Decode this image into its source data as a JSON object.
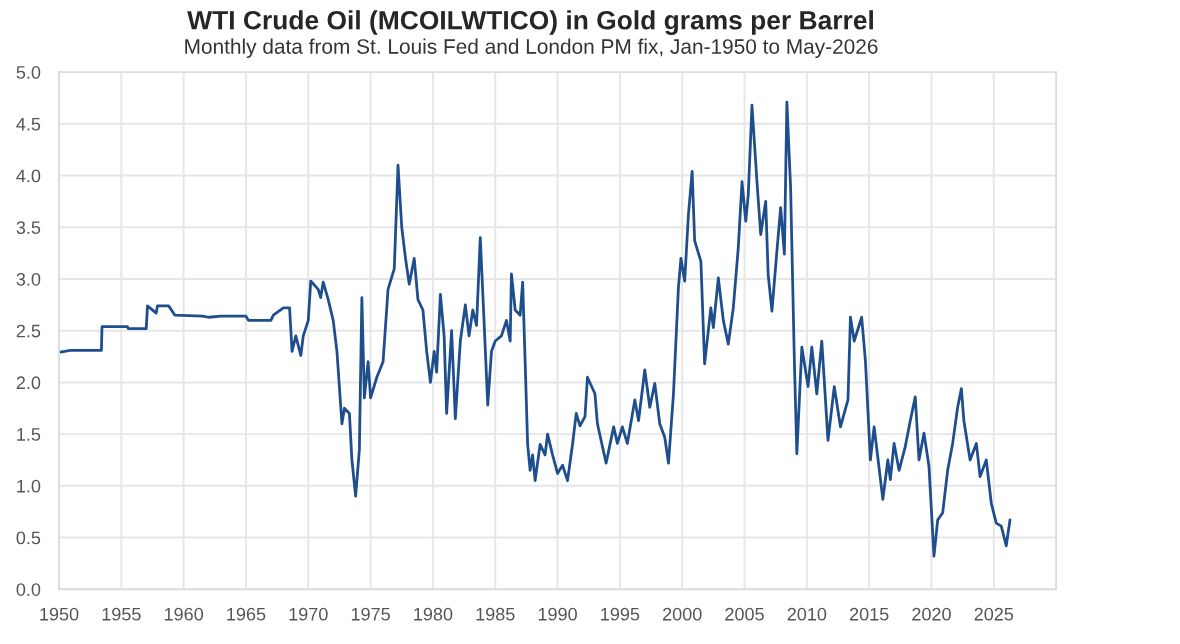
{
  "chart_data": {
    "type": "line",
    "title": "WTI Crude Oil (MCOILWTICO) in Gold grams per Barrel",
    "subtitle": "Monthly data from St. Louis Fed and London PM fix, Jan-1950 to May-2026",
    "xlim": [
      1950,
      2030
    ],
    "xticks": [
      1950,
      1955,
      1960,
      1965,
      1970,
      1975,
      1980,
      1985,
      1990,
      1995,
      2000,
      2005,
      2010,
      2015,
      2020,
      2025
    ],
    "ylim": [
      0,
      5
    ],
    "yticks": [
      {
        "value": 0,
        "label": "0.0"
      },
      {
        "value": 0.5,
        "label": "0.5"
      },
      {
        "value": 1,
        "label": "1.0"
      },
      {
        "value": 1.5,
        "label": "1.5"
      },
      {
        "value": 2,
        "label": "2.0"
      },
      {
        "value": 2.5,
        "label": "2.5"
      },
      {
        "value": 3,
        "label": "3.0"
      },
      {
        "value": 3.5,
        "label": "3.5"
      },
      {
        "value": 4,
        "label": "4.0"
      },
      {
        "value": 4.5,
        "label": "4.5"
      },
      {
        "value": 5,
        "label": "5.0"
      }
    ],
    "grid": true,
    "marker": "none",
    "line_style": "solid",
    "series": [
      {
        "color": "#1f4e8c",
        "x": [
          1950,
          1950.9,
          1953.4,
          1953.45,
          1955.5,
          1955.55,
          1957.0,
          1957.1,
          1957.8,
          1957.9,
          1958.8,
          1959.3,
          1961.5,
          1962,
          1963,
          1965,
          1965.2,
          1967,
          1967.2,
          1968.0,
          1968.5,
          1968.7,
          1969,
          1969.4,
          1969.6,
          1970,
          1970.2,
          1970.8,
          1971,
          1971.2,
          1971.6,
          1972,
          1972.3,
          1972.7,
          1972.9,
          1973.3,
          1973.5,
          1973.8,
          1974.1,
          1974.3,
          1974.5,
          1974.8,
          1975,
          1975.5,
          1976,
          1976.4,
          1976.9,
          1977.2,
          1977.5,
          1977.8,
          1978.1,
          1978.5,
          1978.8,
          1979.2,
          1979.5,
          1979.8,
          1980.1,
          1980.3,
          1980.6,
          1980.9,
          1981.1,
          1981.5,
          1981.8,
          1982.2,
          1982.6,
          1982.9,
          1983.2,
          1983.5,
          1983.8,
          1984.1,
          1984.4,
          1984.7,
          1985,
          1985.5,
          1985.9,
          1986.2,
          1986.3,
          1986.6,
          1987,
          1987.2,
          1987.4,
          1987.6,
          1987.8,
          1988,
          1988.2,
          1988.6,
          1989,
          1989.2,
          1989.6,
          1990,
          1990.4,
          1990.8,
          1991.2,
          1991.5,
          1991.8,
          1992.2,
          1992.4,
          1993.0,
          1993.2,
          1993.6,
          1993.9,
          1994.5,
          1994.8,
          1995.2,
          1995.6,
          1996.2,
          1996.5,
          1997.0,
          1997.4,
          1997.8,
          1998.2,
          1998.6,
          1998.9,
          1999.3,
          1999.7,
          1999.9,
          2000.2,
          2000.5,
          2000.8,
          2001.0,
          2001.5,
          2001.8,
          2002.3,
          2002.5,
          2002.9,
          2003.3,
          2003.7,
          2004.1,
          2004.5,
          2004.8,
          2005.1,
          2005.3,
          2005.6,
          2006.0,
          2006.3,
          2006.7,
          2006.9,
          2007.2,
          2007.6,
          2007.9,
          2008.2,
          2008.4,
          2008.7,
          2009.0,
          2009.2,
          2009.6,
          2010.1,
          2010.4,
          2010.8,
          2011.2,
          2011.7,
          2012.2,
          2012.7,
          2013.3,
          2013.5,
          2013.8,
          2014.4,
          2014.7,
          2015.1,
          2015.4,
          2016.1,
          2016.5,
          2016.7,
          2017.0,
          2017.4,
          2017.9,
          2018.3,
          2018.7,
          2019.0,
          2019.4,
          2019.8,
          2020.2,
          2020.5,
          2020.9,
          2021.3,
          2021.7,
          2022.1,
          2022.4,
          2022.6,
          2023.1,
          2023.6,
          2023.9,
          2024.4,
          2024.8,
          2025.2,
          2025.6,
          2026.0,
          2026.3
        ],
        "values": [
          2.29,
          2.31,
          2.31,
          2.54,
          2.54,
          2.52,
          2.52,
          2.74,
          2.67,
          2.74,
          2.74,
          2.65,
          2.64,
          2.63,
          2.64,
          2.64,
          2.6,
          2.6,
          2.65,
          2.72,
          2.72,
          2.3,
          2.45,
          2.26,
          2.45,
          2.6,
          2.98,
          2.9,
          2.82,
          2.97,
          2.8,
          2.6,
          2.3,
          1.6,
          1.75,
          1.7,
          1.25,
          0.9,
          1.35,
          2.82,
          1.85,
          2.2,
          1.85,
          2.05,
          2.2,
          2.9,
          3.1,
          4.1,
          3.5,
          3.2,
          2.95,
          3.2,
          2.8,
          2.7,
          2.3,
          2.0,
          2.3,
          2.1,
          2.85,
          2.45,
          1.7,
          2.5,
          1.65,
          2.4,
          2.75,
          2.45,
          2.7,
          2.55,
          3.4,
          2.6,
          1.78,
          2.3,
          2.4,
          2.45,
          2.6,
          2.4,
          3.05,
          2.7,
          2.65,
          2.97,
          2.2,
          1.4,
          1.15,
          1.3,
          1.05,
          1.4,
          1.3,
          1.5,
          1.3,
          1.12,
          1.2,
          1.05,
          1.4,
          1.7,
          1.58,
          1.67,
          2.05,
          1.89,
          1.6,
          1.38,
          1.22,
          1.57,
          1.41,
          1.57,
          1.41,
          1.83,
          1.63,
          2.12,
          1.76,
          1.99,
          1.6,
          1.47,
          1.22,
          1.89,
          2.92,
          3.2,
          2.98,
          3.62,
          4.04,
          3.37,
          3.17,
          2.18,
          2.72,
          2.53,
          3.01,
          2.6,
          2.37,
          2.72,
          3.3,
          3.94,
          3.56,
          3.81,
          4.68,
          3.94,
          3.43,
          3.75,
          3.04,
          2.69,
          3.27,
          3.69,
          3.24,
          4.71,
          3.88,
          2.21,
          1.31,
          2.34,
          1.96,
          2.34,
          1.89,
          2.4,
          1.44,
          1.96,
          1.57,
          1.83,
          2.63,
          2.4,
          2.63,
          2.21,
          1.25,
          1.57,
          0.87,
          1.25,
          1.06,
          1.41,
          1.15,
          1.38,
          1.63,
          1.86,
          1.25,
          1.51,
          1.19,
          0.32,
          0.67,
          0.74,
          1.15,
          1.41,
          1.76,
          1.94,
          1.63,
          1.25,
          1.41,
          1.09,
          1.25,
          0.83,
          0.64,
          0.61,
          0.42,
          0.67
        ]
      }
    ]
  }
}
